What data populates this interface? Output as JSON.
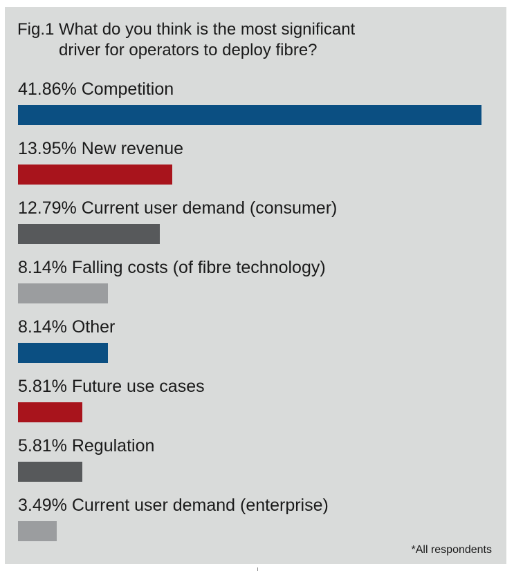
{
  "chart_data": {
    "type": "bar",
    "orientation": "horizontal",
    "title_line1": "Fig.1 What do you think is the most significant",
    "title_line2": "driver for operators to deploy fibre?",
    "footnote": "*All respondents",
    "categories": [
      "Competition",
      "New revenue",
      "Current user demand (consumer)",
      "Falling costs (of fibre technology)",
      "Other",
      "Future use cases",
      "Regulation",
      "Current user demand (enterprise)"
    ],
    "values": [
      41.86,
      13.95,
      12.79,
      8.14,
      8.14,
      5.81,
      5.81,
      3.49
    ],
    "value_labels": [
      "41.86%",
      "13.95%",
      "12.79%",
      "8.14%",
      "8.14%",
      "5.81%",
      "5.81%",
      "3.49%"
    ],
    "colors": [
      "#0b4f82",
      "#a8141c",
      "#57595b",
      "#9b9d9f",
      "#0b4f82",
      "#a8141c",
      "#57595b",
      "#9b9d9f"
    ],
    "panel_background": "#d9dbda",
    "grid": false,
    "legend": "none"
  }
}
